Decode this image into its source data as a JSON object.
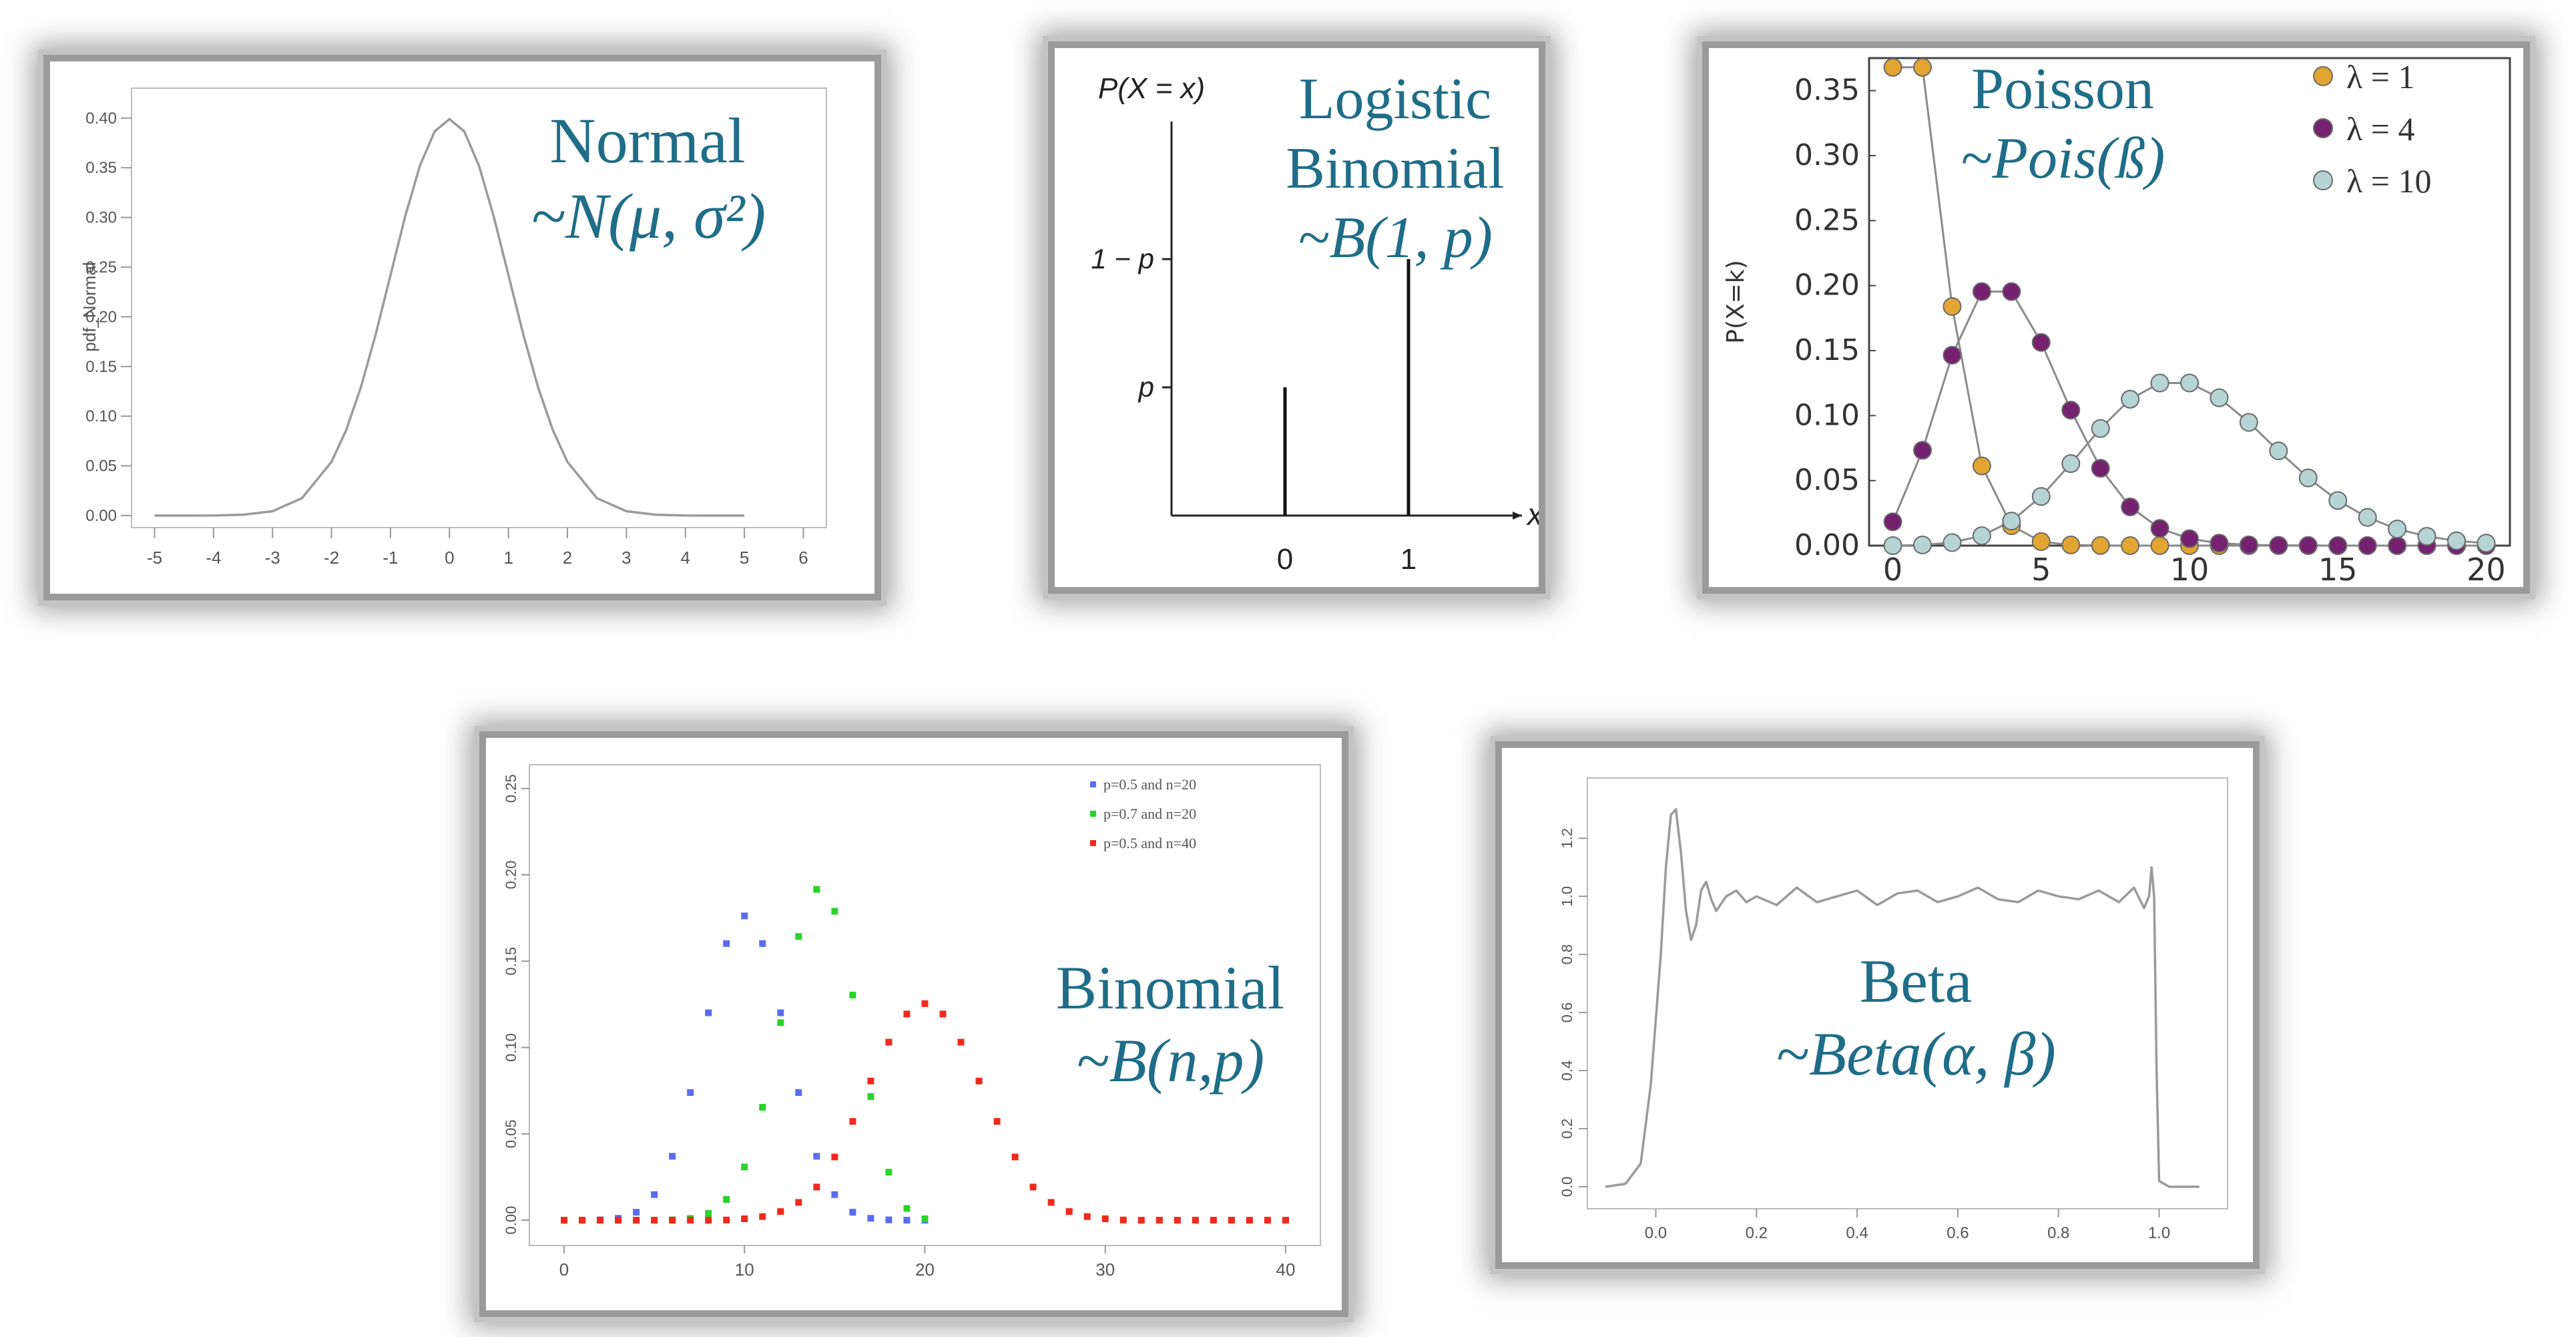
{
  "chart_data": [
    {
      "type": "line",
      "label": {
        "name": "Normal",
        "formula": "~N(μ, σ²)"
      },
      "ylabel": "pdf_Normal",
      "x": [
        -5,
        -4.5,
        -4,
        -3.5,
        -3,
        -2.5,
        -2,
        -1.75,
        -1.5,
        -1.25,
        -1,
        -0.75,
        -0.5,
        -0.25,
        0,
        0.25,
        0.5,
        0.75,
        1,
        1.25,
        1.5,
        1.75,
        2,
        2.5,
        3,
        3.5,
        4,
        4.5,
        5
      ],
      "y": [
        0,
        0,
        0.0001,
        0.0009,
        0.0044,
        0.0175,
        0.054,
        0.0863,
        0.1295,
        0.1826,
        0.242,
        0.3011,
        0.3521,
        0.3867,
        0.3989,
        0.3867,
        0.3521,
        0.3011,
        0.242,
        0.1826,
        0.1295,
        0.0863,
        0.054,
        0.0175,
        0.0044,
        0.0009,
        0.0001,
        0,
        0
      ],
      "xticks": [
        "-5",
        "-4",
        "-3",
        "-2",
        "-1",
        "0",
        "1",
        "2",
        "3",
        "4",
        "5",
        "6"
      ],
      "yticks": [
        "0.00",
        "0.05",
        "0.10",
        "0.15",
        "0.20",
        "0.25",
        "0.30",
        "0.35",
        "0.40"
      ],
      "xlim": [
        -5.3,
        6.3
      ],
      "ylim": [
        0,
        0.42
      ],
      "grid": false
    },
    {
      "type": "bar",
      "label": {
        "name_line1": "Logistic",
        "name_line2": "Binomial",
        "formula": "~B(1, p)"
      },
      "ylabel": "P(X = x)",
      "xlabel": "x",
      "categories": [
        "0",
        "1"
      ],
      "values": [
        0.3,
        0.6
      ],
      "ytick_labels": [
        "p",
        "1 − p"
      ],
      "ylim": [
        0,
        1
      ],
      "grid": false
    },
    {
      "type": "scatter",
      "label": {
        "name": "Poisson",
        "formula": "~Pois(ß)"
      },
      "ylabel": "P(X=k)",
      "xticks": [
        "0",
        "5",
        "10",
        "15",
        "20"
      ],
      "yticks": [
        "0.00",
        "0.05",
        "0.10",
        "0.15",
        "0.20",
        "0.25",
        "0.30",
        "0.35"
      ],
      "xlim": [
        -0.8,
        20.8
      ],
      "ylim": [
        0,
        0.375
      ],
      "legend_position": "top-right",
      "series": [
        {
          "name": "λ = 1",
          "color": "#e3a531",
          "x": [
            0,
            1,
            2,
            3,
            4,
            5,
            6,
            7,
            8,
            9,
            10,
            11,
            12,
            13,
            14,
            15,
            16,
            17,
            18,
            19,
            20
          ],
          "y": [
            0.3679,
            0.3679,
            0.1839,
            0.0613,
            0.0153,
            0.0031,
            0.0005,
            0.0001,
            0,
            0,
            0,
            0,
            0,
            0,
            0,
            0,
            0,
            0,
            0,
            0,
            0
          ]
        },
        {
          "name": "λ = 4",
          "color": "#74226f",
          "x": [
            0,
            1,
            2,
            3,
            4,
            5,
            6,
            7,
            8,
            9,
            10,
            11,
            12,
            13,
            14,
            15,
            16,
            17,
            18,
            19,
            20
          ],
          "y": [
            0.0183,
            0.0733,
            0.1465,
            0.1954,
            0.1954,
            0.1563,
            0.1042,
            0.0595,
            0.0298,
            0.0132,
            0.0053,
            0.0019,
            0.0006,
            0.0002,
            0.0001,
            0,
            0,
            0,
            0,
            0,
            0
          ]
        },
        {
          "name": "λ = 10",
          "color": "#b7d4d4",
          "x": [
            0,
            1,
            2,
            3,
            4,
            5,
            6,
            7,
            8,
            9,
            10,
            11,
            12,
            13,
            14,
            15,
            16,
            17,
            18,
            19,
            20
          ],
          "y": [
            0,
            0.0005,
            0.0023,
            0.0076,
            0.0189,
            0.0378,
            0.0631,
            0.0901,
            0.1126,
            0.1251,
            0.1251,
            0.1137,
            0.0948,
            0.0729,
            0.0521,
            0.0347,
            0.0217,
            0.0128,
            0.0071,
            0.0037,
            0.0019
          ]
        }
      ]
    },
    {
      "type": "scatter",
      "label": {
        "name": "Binomial",
        "formula": "~B(n,p)"
      },
      "xticks": [
        "0",
        "10",
        "20",
        "30",
        "40"
      ],
      "yticks": [
        "0.00",
        "0.05",
        "0.10",
        "0.15",
        "0.20",
        "0.25"
      ],
      "xlim": [
        -1,
        41
      ],
      "ylim": [
        -0.005,
        0.258
      ],
      "legend_position": "top-right",
      "series": [
        {
          "name": "p=0.5 and n=20",
          "color": "#5b6cf0",
          "x": [
            0,
            1,
            2,
            3,
            4,
            5,
            6,
            7,
            8,
            9,
            10,
            11,
            12,
            13,
            14,
            15,
            16,
            17,
            18,
            19,
            20
          ],
          "y": [
            0,
            0,
            0.0002,
            0.0011,
            0.0046,
            0.0148,
            0.037,
            0.0739,
            0.1201,
            0.1602,
            0.1762,
            0.1602,
            0.1201,
            0.0739,
            0.037,
            0.0148,
            0.0046,
            0.0011,
            0.0002,
            0,
            0
          ]
        },
        {
          "name": "p=0.7 and n=20",
          "color": "#27d427",
          "x": [
            0,
            1,
            2,
            3,
            4,
            5,
            6,
            7,
            8,
            9,
            10,
            11,
            12,
            13,
            14,
            15,
            16,
            17,
            18,
            19,
            20
          ],
          "y": [
            0,
            0,
            0,
            0,
            0,
            0,
            0.0002,
            0.001,
            0.0039,
            0.012,
            0.0308,
            0.0654,
            0.1144,
            0.1643,
            0.1916,
            0.1789,
            0.1304,
            0.0716,
            0.0278,
            0.0068,
            0.0008
          ]
        },
        {
          "name": "p=0.5 and n=40",
          "color": "#f02a1c",
          "x": [
            0,
            1,
            2,
            3,
            4,
            5,
            6,
            7,
            8,
            9,
            10,
            11,
            12,
            13,
            14,
            15,
            16,
            17,
            18,
            19,
            20,
            21,
            22,
            23,
            24,
            25,
            26,
            27,
            28,
            29,
            30,
            31,
            32,
            33,
            34,
            35,
            36,
            37,
            38,
            39,
            40
          ],
          "y": [
            0,
            0,
            0,
            0,
            0,
            0,
            0,
            0,
            0,
            0.0001,
            0.0008,
            0.0021,
            0.005,
            0.0103,
            0.0192,
            0.0366,
            0.0572,
            0.0806,
            0.1031,
            0.1194,
            0.1254,
            0.1194,
            0.1031,
            0.0806,
            0.0572,
            0.0366,
            0.0192,
            0.0103,
            0.005,
            0.0021,
            0.0008,
            0.0001,
            0,
            0,
            0,
            0,
            0,
            0,
            0,
            0,
            0
          ]
        }
      ]
    },
    {
      "type": "line",
      "label": {
        "name": "Beta",
        "formula": "~Beta(α, β)"
      },
      "x": [
        -0.1,
        -0.06,
        -0.03,
        -0.01,
        0.01,
        0.02,
        0.03,
        0.04,
        0.05,
        0.06,
        0.07,
        0.08,
        0.09,
        0.1,
        0.11,
        0.12,
        0.14,
        0.16,
        0.18,
        0.2,
        0.24,
        0.28,
        0.32,
        0.36,
        0.4,
        0.44,
        0.48,
        0.52,
        0.56,
        0.6,
        0.64,
        0.68,
        0.72,
        0.76,
        0.8,
        0.84,
        0.88,
        0.92,
        0.95,
        0.97,
        0.98,
        0.985,
        0.99,
        0.995,
        1.0,
        1.02,
        1.05,
        1.08
      ],
      "y": [
        0,
        0.01,
        0.08,
        0.35,
        0.8,
        1.1,
        1.28,
        1.3,
        1.15,
        0.95,
        0.85,
        0.9,
        1.02,
        1.05,
        0.99,
        0.95,
        1.0,
        1.02,
        0.98,
        1.0,
        0.97,
        1.03,
        0.98,
        1.0,
        1.02,
        0.97,
        1.01,
        1.02,
        0.98,
        1.0,
        1.03,
        0.99,
        0.98,
        1.02,
        1.0,
        0.99,
        1.02,
        0.98,
        1.03,
        0.96,
        1.0,
        1.1,
        1.0,
        0.4,
        0.02,
        0,
        0,
        0
      ],
      "xticks": [
        "0.0",
        "0.2",
        "0.4",
        "0.6",
        "0.8",
        "1.0"
      ],
      "yticks": [
        "0.0",
        "0.2",
        "0.4",
        "0.6",
        "0.8",
        "1.0",
        "1.2"
      ],
      "xlim": [
        -0.12,
        1.12
      ],
      "ylim": [
        -0.03,
        1.35
      ],
      "grid": false
    }
  ]
}
